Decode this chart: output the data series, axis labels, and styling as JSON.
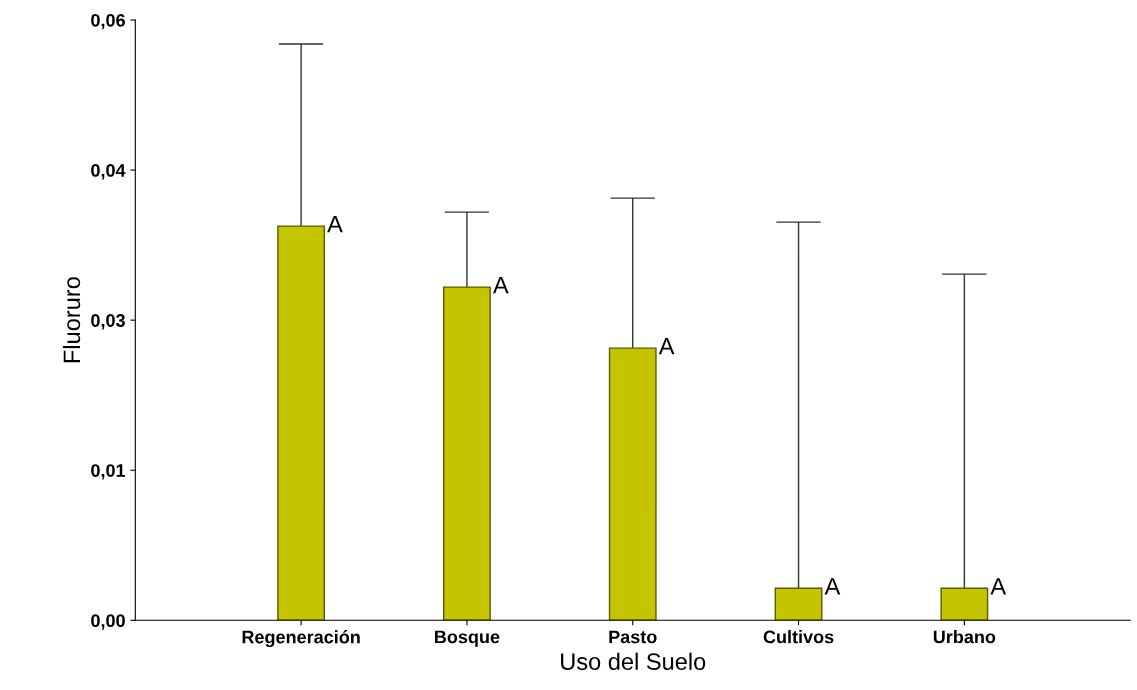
{
  "chart_data": {
    "type": "bar",
    "xlabel": "Uso del Suelo",
    "ylabel": "Fluoruro",
    "categories": [
      "Regeneración",
      "Bosque",
      "Pasto",
      "Cultivos",
      "Urbano"
    ],
    "values": [
      0.0394,
      0.0333,
      0.0272,
      0.0032,
      0.0032
    ],
    "errors": [
      [
        0.0394,
        0.0576
      ],
      [
        0.0333,
        0.0408
      ],
      [
        0.0272,
        0.0422
      ],
      [
        0.0032,
        0.0398
      ],
      [
        0.0032,
        0.0346
      ]
    ],
    "color": "#c4c400",
    "ylim": [
      0,
      0.06
    ],
    "yticks": [
      {
        "value": 0,
        "label": "0,00"
      },
      {
        "value": 0.015,
        "label": "0,01"
      },
      {
        "value": 0.03,
        "label": "0,03"
      },
      {
        "value": 0.045,
        "label": "0,04"
      },
      {
        "value": 0.06,
        "label": "0,06"
      }
    ],
    "annotations": [
      {
        "text": "A",
        "x": "Regeneración",
        "y": 0.0394
      },
      {
        "text": "A",
        "x": "Bosque",
        "y": 0.0333
      },
      {
        "text": "A",
        "x": "Pasto",
        "y": 0.0272
      },
      {
        "text": "A",
        "x": "Cultivos",
        "y": 0.0032
      },
      {
        "text": "A",
        "x": "Urbano",
        "y": 0.0032
      }
    ],
    "grid": false,
    "legend": false
  }
}
